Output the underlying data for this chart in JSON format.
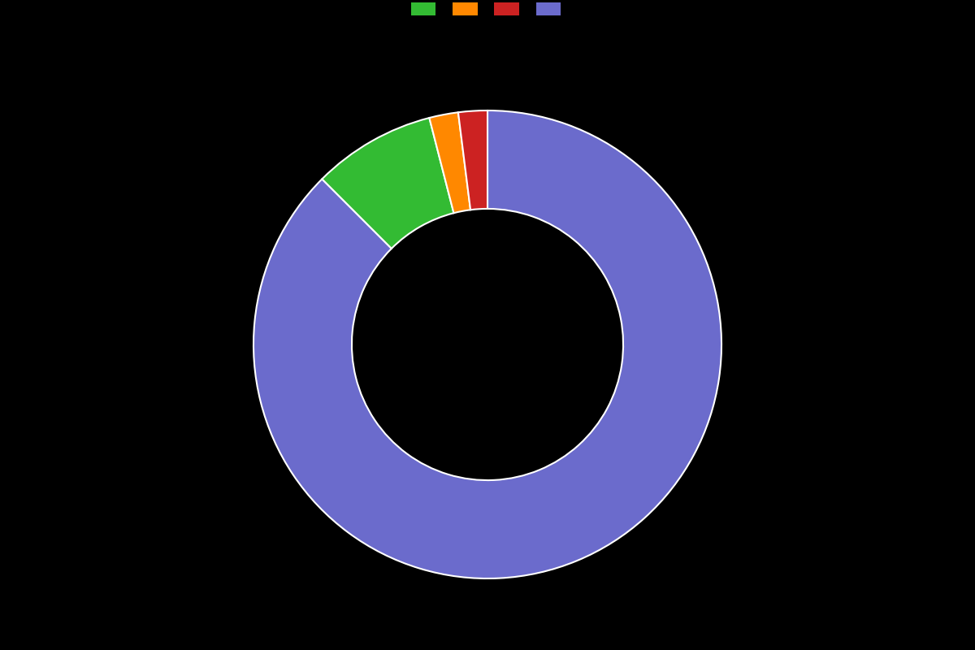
{
  "values": [
    87.5,
    8.5,
    2.0,
    2.0
  ],
  "colors": [
    "#6b6bcc",
    "#33bb33",
    "#ff8800",
    "#cc2222"
  ],
  "legend_colors": [
    "#33bb33",
    "#ff8800",
    "#cc2222",
    "#6b6bcc"
  ],
  "background_color": "#000000",
  "wedge_edge_color": "#ffffff",
  "wedge_linewidth": 1.5,
  "donut_width": 0.42,
  "startangle": 90
}
